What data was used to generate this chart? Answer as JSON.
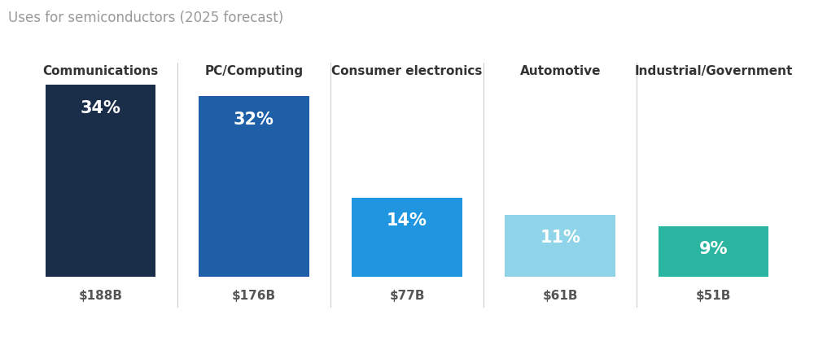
{
  "title": "Uses for semiconductors (2025 forecast)",
  "categories": [
    "Communications",
    "PC/Computing",
    "Consumer electronics",
    "Automotive",
    "Industrial/Government"
  ],
  "percentages": [
    34,
    32,
    14,
    11,
    9
  ],
  "values": [
    "$188B",
    "$176B",
    "$77B",
    "$61B",
    "$51B"
  ],
  "bar_colors": [
    "#1a2e4a",
    "#1e5fa8",
    "#2196e0",
    "#8fd4e8",
    "#2ab5a0"
  ],
  "pct_labels": [
    "34%",
    "32%",
    "14%",
    "11%",
    "9%"
  ],
  "title_color": "#999999",
  "category_color": "#333333",
  "value_color": "#555555",
  "pct_text_color": "#ffffff",
  "divider_color": "#cccccc",
  "background_color": "#ffffff",
  "title_fontsize": 12,
  "category_fontsize": 11,
  "value_fontsize": 11,
  "pct_fontsize": 15,
  "bar_width": 0.72,
  "ylim_max": 38
}
